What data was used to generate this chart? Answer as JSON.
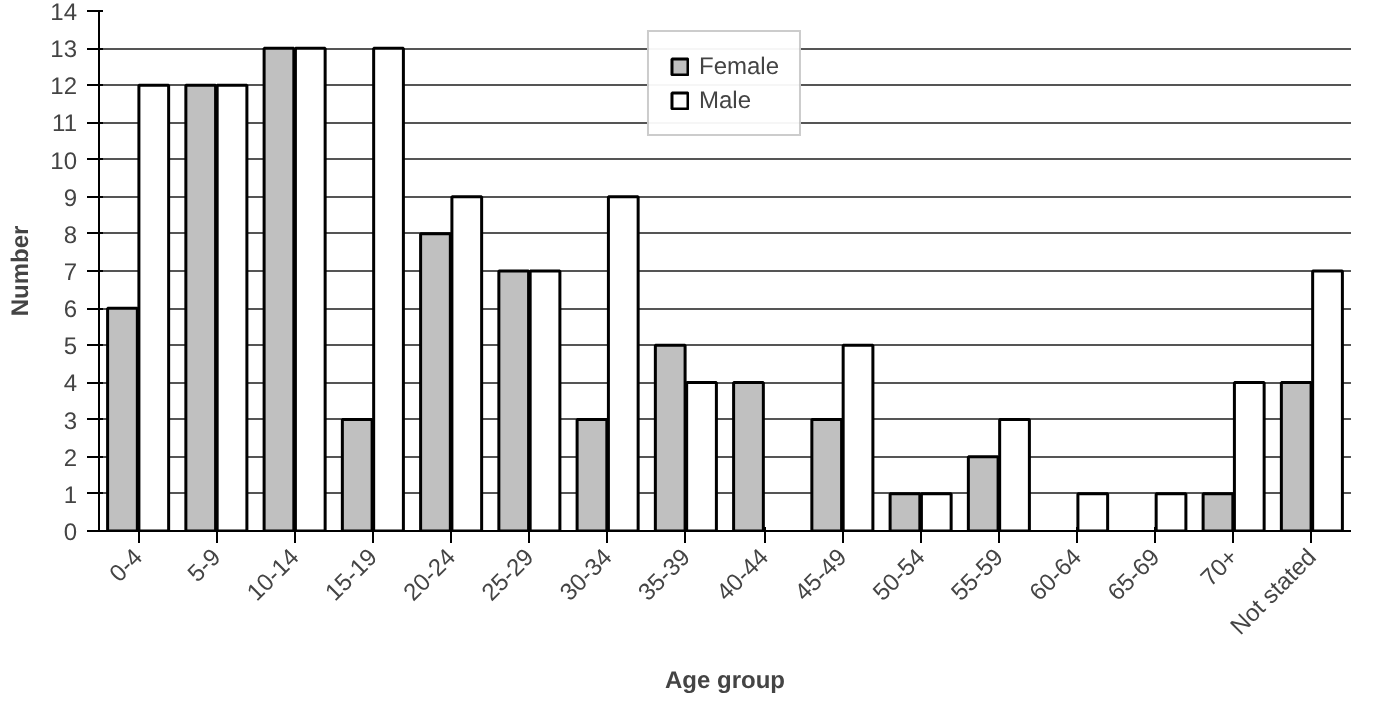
{
  "chart_data": {
    "type": "bar",
    "xlabel": "Age group",
    "ylabel": "Number",
    "categories": [
      "0-4",
      "5-9",
      "10-14",
      "15-19",
      "20-24",
      "25-29",
      "30-34",
      "35-39",
      "40-44",
      "45-49",
      "50-54",
      "55-59",
      "60-64",
      "65-69",
      "70+",
      "Not stated"
    ],
    "series": [
      {
        "name": "Female",
        "color": "#c0c0c0",
        "values": [
          6,
          12,
          13,
          3,
          8,
          7,
          3,
          5,
          4,
          3,
          1,
          2,
          0,
          0,
          1,
          4
        ]
      },
      {
        "name": "Male",
        "color": "#ffffff",
        "values": [
          12,
          12,
          13,
          13,
          9,
          7,
          9,
          4,
          0,
          5,
          1,
          3,
          1,
          1,
          4,
          7
        ]
      }
    ],
    "ylim": [
      0,
      14
    ],
    "yticks": [
      0,
      1,
      2,
      3,
      4,
      5,
      6,
      7,
      8,
      9,
      10,
      11,
      12,
      13,
      14
    ],
    "grid": "y",
    "legend": "top"
  }
}
